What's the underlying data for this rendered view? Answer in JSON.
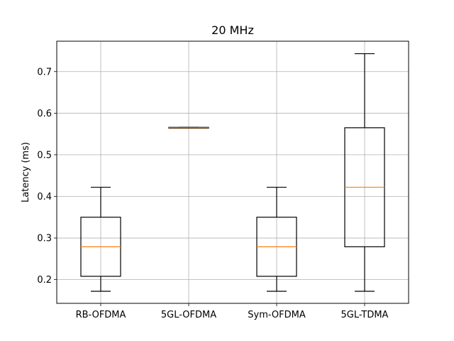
{
  "chart_data": {
    "type": "box",
    "title": "20 MHz",
    "xlabel": "",
    "ylabel": "Latency (ms)",
    "ylim": [
      0.143,
      0.773
    ],
    "yticks": [
      0.2,
      0.3,
      0.4,
      0.5,
      0.6,
      0.7
    ],
    "ytick_labels": [
      "0.2",
      "0.3",
      "0.4",
      "0.5",
      "0.6",
      "0.7"
    ],
    "grid": true,
    "categories": [
      "RB-OFDMA",
      "5GL-OFDMA",
      "Sym-OFDMA",
      "5GL-TDMA"
    ],
    "boxes": [
      {
        "whisker_low": 0.172,
        "q1": 0.208,
        "median": 0.279,
        "q3": 0.35,
        "whisker_high": 0.422
      },
      {
        "whisker_low": 0.564,
        "q1": 0.564,
        "median": 0.565,
        "q3": 0.566,
        "whisker_high": 0.566
      },
      {
        "whisker_low": 0.172,
        "q1": 0.208,
        "median": 0.279,
        "q3": 0.35,
        "whisker_high": 0.422
      },
      {
        "whisker_low": 0.172,
        "q1": 0.279,
        "median": 0.422,
        "q3": 0.565,
        "whisker_high": 0.743
      }
    ],
    "colors": {
      "box": "#000000",
      "median": "#ff7f0e",
      "grid": "#b0b0b0"
    }
  }
}
